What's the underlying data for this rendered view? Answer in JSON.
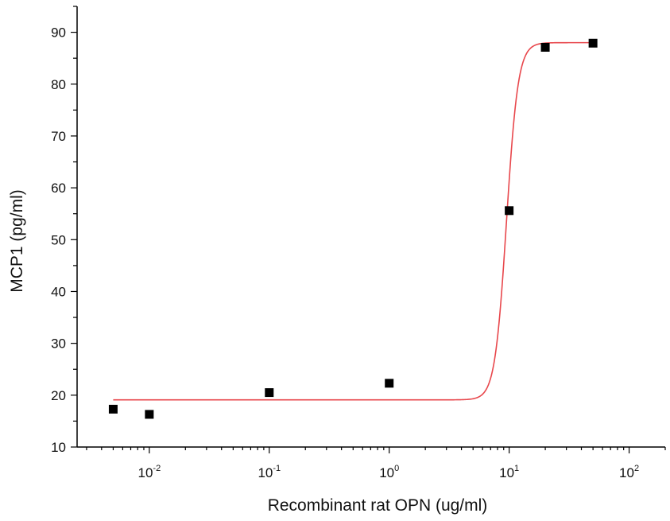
{
  "chart_data": {
    "type": "scatter",
    "title": "",
    "xlabel": "Recombinant rat OPN (ug/ml)",
    "ylabel": "MCP1 (pg/ml)",
    "x_scale": "log",
    "xlim": [
      0.0025,
      200
    ],
    "ylim": [
      10,
      95
    ],
    "x_ticks": [
      {
        "value": 0.01,
        "base": "10",
        "exp": "-2"
      },
      {
        "value": 0.1,
        "base": "10",
        "exp": "-1"
      },
      {
        "value": 1,
        "base": "10",
        "exp": "0"
      },
      {
        "value": 10,
        "base": "10",
        "exp": "1"
      },
      {
        "value": 100,
        "base": "10",
        "exp": "2"
      }
    ],
    "y_ticks": [
      10,
      20,
      30,
      40,
      50,
      60,
      70,
      80,
      90
    ],
    "grid": false,
    "legend": "none",
    "series": [
      {
        "type": "scatter",
        "marker": "square",
        "color": "#000000",
        "x": [
          0.005,
          0.01,
          0.1,
          1,
          10,
          20,
          50
        ],
        "y": [
          17.3,
          16.3,
          20.5,
          22.3,
          55.6,
          87.1,
          87.9
        ]
      },
      {
        "type": "line",
        "fit": "sigmoidal",
        "color": "#e8474c",
        "bottom": 19.1,
        "top": 88.0,
        "x0": 9.5,
        "hill": 9,
        "x_range": [
          0.005,
          50
        ]
      }
    ]
  }
}
